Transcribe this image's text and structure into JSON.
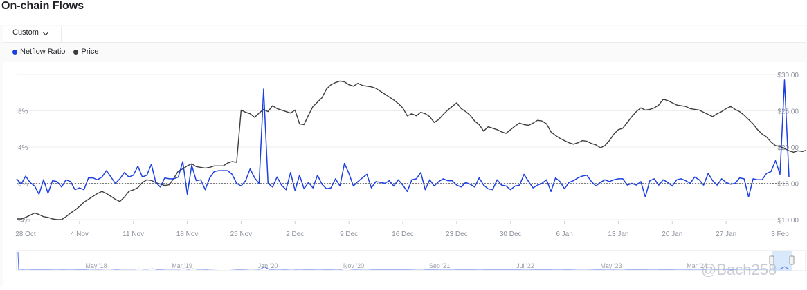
{
  "page": {
    "title": "On-chain Flows"
  },
  "toolbar": {
    "range_label": "Custom"
  },
  "icons": {
    "dropdown": "chevron-down-icon"
  },
  "colors": {
    "netflow": "#1c3fe0",
    "price": "#3d3d3d",
    "axis_text": "#8a8f99"
  },
  "watermark": "@Bach258",
  "chart_data": {
    "type": "line",
    "x_tick_labels": [
      "28 Oct",
      "4 Nov",
      "11 Nov",
      "18 Nov",
      "25 Nov",
      "2 Dec",
      "9 Dec",
      "16 Dec",
      "23 Dec",
      "30 Dec",
      "6 Jan",
      "13 Jan",
      "20 Jan",
      "27 Jan",
      "3 Feb"
    ],
    "x_tick_index": [
      2,
      14,
      26,
      38,
      50,
      62,
      74,
      86,
      98,
      110,
      122,
      134,
      146,
      158,
      170
    ],
    "left_axis": {
      "ticks": [
        "8%",
        "4%",
        "0%",
        "-4%"
      ],
      "values": [
        8,
        4,
        0,
        -4
      ],
      "range": [
        -4,
        12
      ]
    },
    "right_axis": {
      "ticks": [
        "$30.00",
        "$25.00",
        "$20.00",
        "$15.00",
        "$10.00"
      ],
      "values": [
        30,
        25,
        20,
        15,
        10
      ],
      "range": [
        10,
        30
      ]
    },
    "reference_line": 0,
    "series": [
      {
        "name": "Netflow Ratio",
        "axis": "left",
        "color": "#1c3fe0",
        "values": [
          0.5,
          -0.1,
          0.8,
          0.1,
          -0.3,
          -1.2,
          0.4,
          -1.1,
          0.3,
          0.2,
          -0.4,
          0.4,
          0.2,
          -0.7,
          -0.5,
          -0.7,
          0.6,
          0.6,
          0.4,
          0.7,
          1.4,
          0.7,
          0,
          0.5,
          1.2,
          0.7,
          0.9,
          1.9,
          0.7,
          0.9,
          2.1,
          0.1,
          -0.4,
          0.6,
          0.5,
          0.5,
          0.7,
          2.4,
          -1.2,
          2,
          0.3,
          0.4,
          -0.7,
          0.6,
          1.3,
          1.4,
          1.4,
          1.4,
          1,
          0,
          -0.3,
          0.3,
          1.6,
          0.6,
          0,
          10.4,
          0,
          -0.4,
          0.7,
          -0.2,
          -0.7,
          1.2,
          -0.8,
          0.9,
          -0.6,
          0.1,
          -0.5,
          0.9,
          -0.1,
          -0.6,
          -0.5,
          0.5,
          -0.3,
          2.2,
          1.1,
          -0.3,
          0.2,
          0.6,
          1,
          -0.5,
          0.2,
          0.1,
          0,
          0.3,
          -0.3,
          0.4,
          -0.2,
          -0.9,
          0.4,
          0.5,
          1.2,
          -0.7,
          0.4,
          -0.3,
          0.2,
          0.5,
          0.3,
          0.3,
          -0.2,
          -0.4,
          0.1,
          -0.1,
          -0.4,
          0.6,
          -0.2,
          -0.6,
          -0.7,
          0.4,
          -0.2,
          -0.3,
          -0.7,
          -0.3,
          -0.2,
          1,
          0.2,
          -0.5,
          -0.2,
          0,
          0.4,
          -0.9,
          0.6,
          0.2,
          -0.6,
          0.1,
          0.3,
          0.6,
          0.8,
          0.9,
          0.2,
          -0.3,
          0.1,
          0.4,
          0.2,
          0.4,
          0.5,
          0.5,
          -0.2,
          0,
          -0.2,
          0.2,
          -1.5,
          0.3,
          0.5,
          -0.2,
          0.4,
          0.1,
          -0.3,
          0.4,
          0.5,
          0.3,
          0,
          0.7,
          0.4,
          -0.2,
          1.1,
          0.3,
          -0.2,
          0.5,
          0.1,
          -0.1,
          0,
          0.6,
          0.5,
          -1.5,
          0.5,
          0.4,
          0.4,
          1.1,
          1.3,
          2.5,
          1,
          11.4,
          0.7
        ]
      },
      {
        "name": "Price",
        "axis": "right",
        "color": "#3d3d3d",
        "values": [
          10.1,
          10.1,
          10.3,
          10.6,
          10.9,
          10.7,
          10.4,
          10.3,
          10.1,
          10,
          10,
          10.4,
          10.9,
          11.3,
          11.8,
          12.4,
          12.8,
          13.2,
          13.6,
          13.9,
          13.6,
          13.2,
          12.8,
          12.5,
          13.1,
          13.9,
          14.1,
          14.4,
          15.1,
          15.5,
          15.4,
          15.1,
          14.9,
          14.7,
          14.8,
          15.7,
          16.7,
          17,
          17.4,
          17.7,
          17.3,
          17.2,
          17.1,
          17.2,
          17.4,
          17.4,
          17.4,
          17.8,
          18,
          17.9,
          25.1,
          24.8,
          24.6,
          24.1,
          24.7,
          25.2,
          24.9,
          25.7,
          25.3,
          25.1,
          24.9,
          24.7,
          25.1,
          23.2,
          23.1,
          24.4,
          25.6,
          26.2,
          26.8,
          28,
          28.6,
          28.9,
          29.1,
          29,
          28.6,
          28.4,
          28.8,
          28.5,
          28.4,
          28.3,
          28.1,
          27.7,
          27.3,
          26.9,
          26.5,
          26,
          25.4,
          24.3,
          24.6,
          24.3,
          24.8,
          24.6,
          24.2,
          23.4,
          23.8,
          24.5,
          25.1,
          25.6,
          26.1,
          25.3,
          24.9,
          24.4,
          23.6,
          23.1,
          22.2,
          22.8,
          22.6,
          22.4,
          22.1,
          21.9,
          22.4,
          22.9,
          23.3,
          23.1,
          23,
          23.3,
          23.7,
          23.6,
          23.2,
          22.1,
          21.6,
          21.2,
          20.9,
          20.6,
          20.4,
          20.6,
          20.9,
          20.8,
          20.5,
          20.3,
          19.9,
          20.2,
          20.9,
          21.8,
          22.4,
          22.6,
          23.4,
          24.2,
          24.9,
          25.4,
          25.1,
          25.2,
          25.4,
          25.8,
          26.6,
          26.4,
          26.1,
          25.8,
          25.7,
          25.6,
          25.3,
          25.2,
          25.1,
          24.8,
          24.5,
          24.2,
          24.6,
          24.9,
          25.3,
          25.6,
          25.2,
          24.9,
          24.4,
          23.8,
          23.2,
          22.4,
          21.8,
          21.4,
          20.7,
          20.2,
          20.1,
          19.8,
          19.5,
          19.3,
          19.5,
          19.4,
          19.6,
          19.3,
          19.4,
          19.6
        ]
      }
    ],
    "navigator": {
      "labels": [
        "May '18",
        "Mar '19",
        "Jan '20",
        "Nov '20",
        "Sep '21",
        "Jul '22",
        "May '23",
        "Mar '24"
      ]
    }
  }
}
